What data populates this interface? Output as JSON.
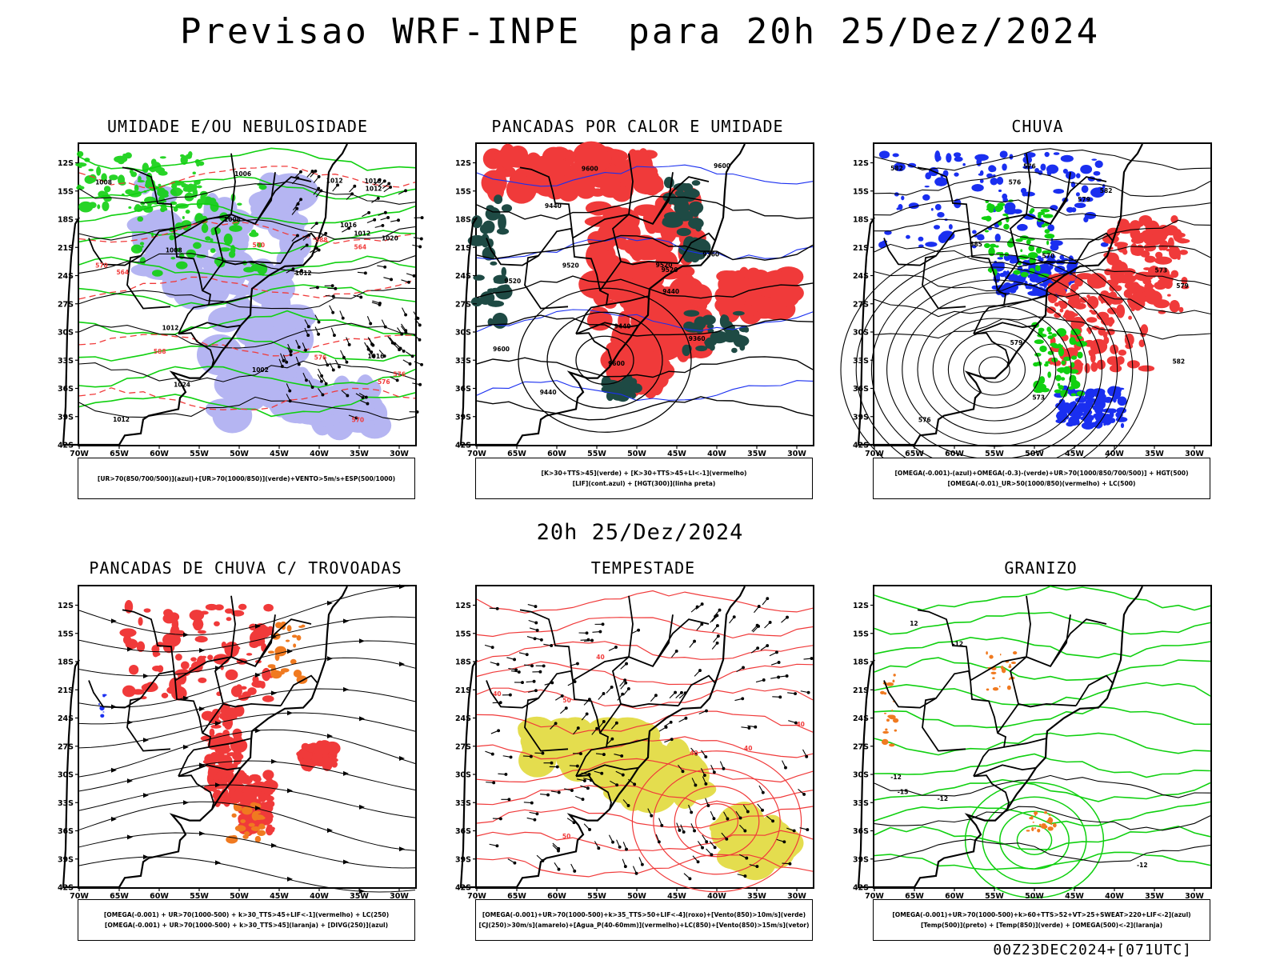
{
  "header": {
    "title": "Previsao WRF-INPE  para 20h 25/Dez/2024",
    "mid_time": "20h 25/Dez/2024",
    "footer": "00Z23DEC2024+[071UTC]"
  },
  "axes": {
    "x_ticks": [
      "70W",
      "65W",
      "60W",
      "55W",
      "50W",
      "45W",
      "40W",
      "35W",
      "30W"
    ],
    "y_ticks": [
      "12S",
      "15S",
      "18S",
      "21S",
      "24S",
      "27S",
      "30S",
      "33S",
      "36S",
      "39S",
      "42S"
    ]
  },
  "colors": {
    "blue": "#1a2ff0",
    "lavender": "#a9a9f0",
    "green": "#10d010",
    "red": "#f03a3a",
    "darkgreen": "#1e4a44",
    "orange": "#f07a20",
    "yellow": "#e0d830",
    "black": "#000000"
  },
  "panels": [
    {
      "id": "umidade",
      "title": "UMIDADE E/OU NEBULOSIDADE",
      "legend": [
        "[UR>70(850/700/500)](azul)+[UR>70(1000/850)](verde)+VENTO>5m/s+ESP(500/1000)"
      ],
      "contour_labels": [
        "1008",
        "1008",
        "1002",
        "1006",
        "1012",
        "1012",
        "1012",
        "1012",
        "1016",
        "1016",
        "1020",
        "1024",
        "1008",
        "1012",
        "1016",
        "1012",
        "570",
        "576",
        "570",
        "576",
        "564",
        "588",
        "564",
        "588",
        "570",
        "576"
      ]
    },
    {
      "id": "pancadas_calor",
      "title": "PANCADAS POR CALOR E UMIDADE",
      "legend": [
        "[K>30+TTS>45](verde) + [K>30+TTS>45+LI<-1](vermelho)",
        "[LIF](cont.azul) + [HGT(300)](linha preta)"
      ],
      "contour_labels": [
        "9600",
        "9520",
        "9440",
        "9440",
        "9360",
        "9440",
        "9600",
        "9600",
        "9520",
        "9520",
        "9600",
        "9520",
        "9440",
        "9360"
      ]
    },
    {
      "id": "chuva",
      "title": "CHUVA",
      "legend": [
        "[OMEGA(-0.001)-(azul)+OMEGA(-0.3)-(verde)+UR>70(1000/850/700/500)] + HGT(500)",
        "[OMEGA(-0.01)_UR>50(1000/850)(vermelho) + LC(500)"
      ],
      "contour_labels": [
        "582",
        "576",
        "570",
        "573",
        "576",
        "579",
        "582",
        "585",
        "579",
        "576",
        "573",
        "582",
        "579"
      ]
    },
    {
      "id": "trovoadas",
      "title": "PANCADAS DE CHUVA C/ TROVOADAS",
      "legend": [
        "[OMEGA(-0.001) + UR>70(1000-500) + k>30_TTS>45+LIF<-1](vermelho) + LC(250)",
        "[OMEGA(-0.001) + UR>70(1000-500) + k>30_TTS>45](laranja) + [DIVG(250)](azul)"
      ],
      "contour_labels": []
    },
    {
      "id": "tempestade",
      "title": "TEMPESTADE",
      "legend": [
        "[OMEGA(-0.001)+UR>70(1000-500)+k>35_TTS>50+LIF<-4](roxo)+[Vento(850)>10m/s](verde)",
        "[CJ(250)>30m/s](amarelo)+[Agua_P(40-60mm)](vermelho)+LC(850)+[Vento(850)>15m/s](vetor)"
      ],
      "contour_labels": [
        "40",
        "40",
        "40",
        "40",
        "50",
        "50",
        "40"
      ]
    },
    {
      "id": "granizo",
      "title": "GRANIZO",
      "legend": [
        "[OMEGA(-0.001)+UR>70(1000-500)+k>60+TTS>52+VT>25+SWEAT>220+LIF<-2](azul)",
        "[Temp(500)](preto) + [Temp(850)](verde) + [OMEGA(500)<-2](laranja)"
      ],
      "contour_labels": [
        "-12",
        "-12",
        "-12",
        "-12",
        "-15",
        "12"
      ]
    }
  ]
}
